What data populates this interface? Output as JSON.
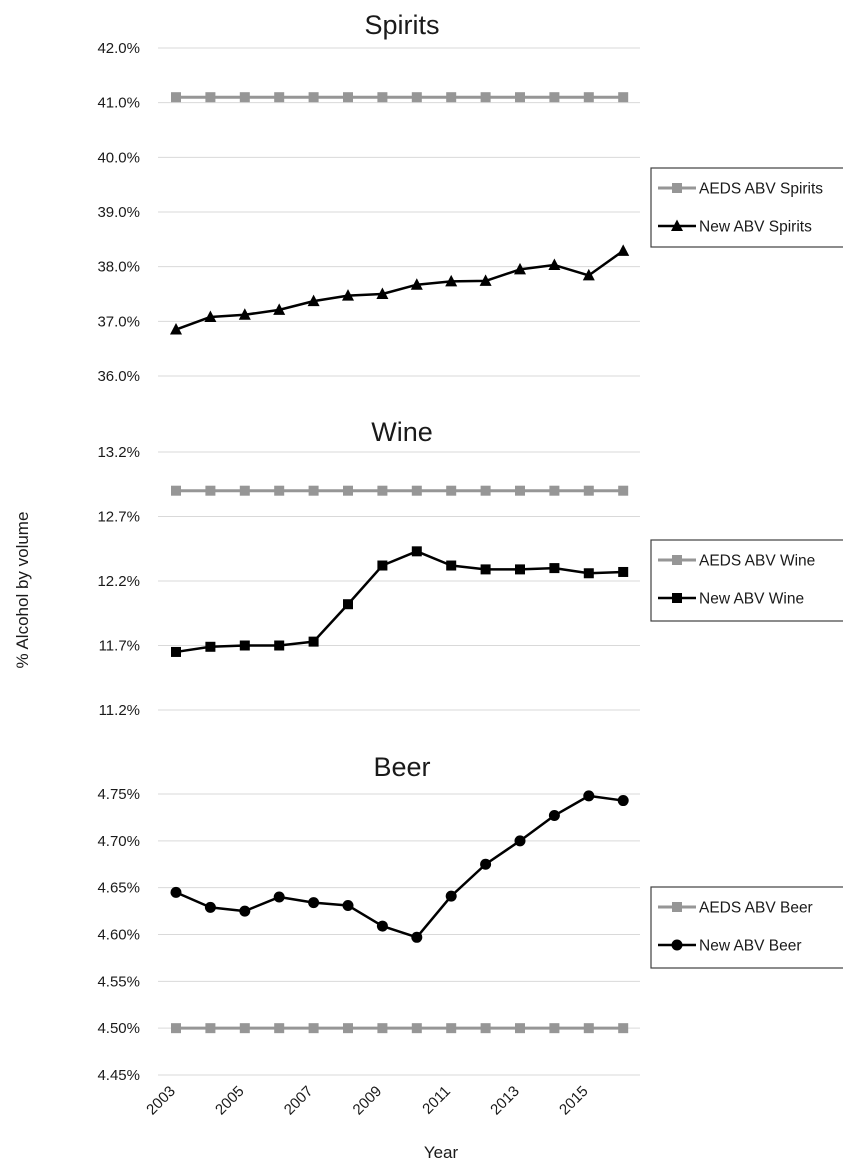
{
  "figure": {
    "ylabel": "% Alcohol by volume",
    "xlabel": "Year",
    "colors": {
      "aeds": "#969696",
      "new": "#000000",
      "grid": "#d9d9d9"
    }
  },
  "chart_data": [
    {
      "type": "line",
      "title": "Spirits",
      "ylim": [
        36.0,
        42.0
      ],
      "yticks": [
        36.0,
        37.0,
        38.0,
        39.0,
        40.0,
        41.0,
        42.0
      ],
      "ytick_labels": [
        "36.0%",
        "37.0%",
        "38.0%",
        "39.0%",
        "40.0%",
        "41.0%",
        "42.0%"
      ],
      "x": [
        2003,
        2004,
        2005,
        2006,
        2007,
        2008,
        2009,
        2010,
        2011,
        2012,
        2013,
        2014,
        2015,
        2016
      ],
      "grid": true,
      "legend_position": "right",
      "series": [
        {
          "name": "AEDS ABV Spirits",
          "marker": "square",
          "color": "#969696",
          "values": [
            41.1,
            41.1,
            41.1,
            41.1,
            41.1,
            41.1,
            41.1,
            41.1,
            41.1,
            41.1,
            41.1,
            41.1,
            41.1,
            41.1
          ]
        },
        {
          "name": "New ABV Spirits",
          "marker": "triangle",
          "color": "#000000",
          "values": [
            36.85,
            37.08,
            37.12,
            37.21,
            37.37,
            37.47,
            37.5,
            37.67,
            37.73,
            37.74,
            37.95,
            38.03,
            37.84,
            38.29
          ]
        }
      ]
    },
    {
      "type": "line",
      "title": "Wine",
      "ylim": [
        11.2,
        13.2
      ],
      "yticks": [
        11.2,
        11.7,
        12.2,
        12.7,
        13.2
      ],
      "ytick_labels": [
        "11.2%",
        "11.7%",
        "12.2%",
        "12.7%",
        "13.2%"
      ],
      "x": [
        2003,
        2004,
        2005,
        2006,
        2007,
        2008,
        2009,
        2010,
        2011,
        2012,
        2013,
        2014,
        2015,
        2016
      ],
      "grid": true,
      "legend_position": "right",
      "series": [
        {
          "name": "AEDS ABV Wine",
          "marker": "square",
          "color": "#969696",
          "values": [
            12.9,
            12.9,
            12.9,
            12.9,
            12.9,
            12.9,
            12.9,
            12.9,
            12.9,
            12.9,
            12.9,
            12.9,
            12.9,
            12.9
          ]
        },
        {
          "name": "New ABV Wine",
          "marker": "square",
          "color": "#000000",
          "values": [
            11.65,
            11.69,
            11.7,
            11.7,
            11.73,
            12.02,
            12.32,
            12.43,
            12.32,
            12.29,
            12.29,
            12.3,
            12.26,
            12.27
          ]
        }
      ]
    },
    {
      "type": "line",
      "title": "Beer",
      "ylim": [
        4.45,
        4.75
      ],
      "yticks": [
        4.45,
        4.5,
        4.55,
        4.6,
        4.65,
        4.7,
        4.75
      ],
      "ytick_labels": [
        "4.45%",
        "4.50%",
        "4.55%",
        "4.60%",
        "4.65%",
        "4.70%",
        "4.75%"
      ],
      "x": [
        2003,
        2004,
        2005,
        2006,
        2007,
        2008,
        2009,
        2010,
        2011,
        2012,
        2013,
        2014,
        2015,
        2016
      ],
      "xtick_labels": [
        "2003",
        "",
        "2005",
        "",
        "2007",
        "",
        "2009",
        "",
        "2011",
        "",
        "2013",
        "",
        "2015",
        ""
      ],
      "grid": true,
      "legend_position": "right",
      "series": [
        {
          "name": "AEDS ABV Beer",
          "marker": "square",
          "color": "#969696",
          "values": [
            4.5,
            4.5,
            4.5,
            4.5,
            4.5,
            4.5,
            4.5,
            4.5,
            4.5,
            4.5,
            4.5,
            4.5,
            4.5,
            4.5
          ]
        },
        {
          "name": "New ABV Beer",
          "marker": "circle",
          "color": "#000000",
          "values": [
            4.645,
            4.629,
            4.625,
            4.64,
            4.634,
            4.631,
            4.609,
            4.597,
            4.641,
            4.675,
            4.7,
            4.727,
            4.748,
            4.743
          ]
        }
      ]
    }
  ]
}
